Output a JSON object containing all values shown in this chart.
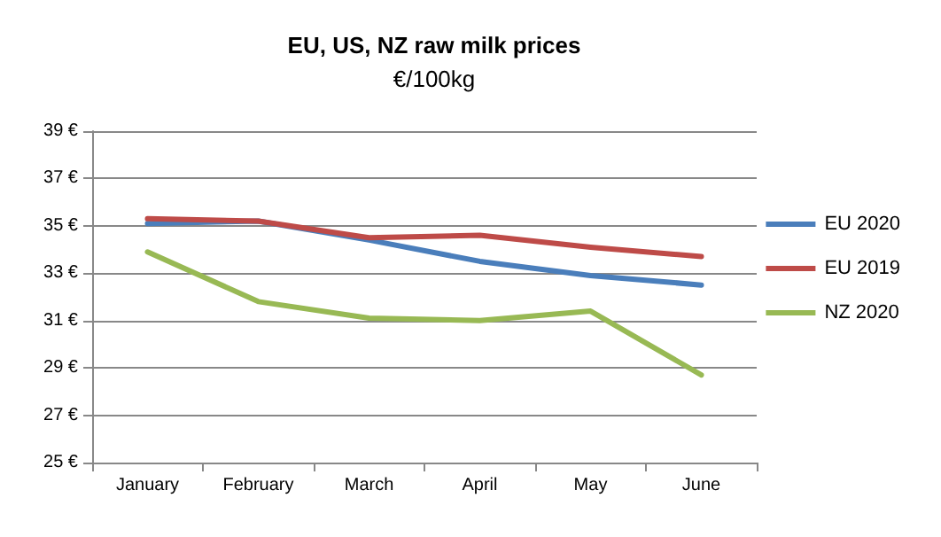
{
  "chart_data": {
    "type": "line",
    "title": "EU, US, NZ raw milk prices",
    "subtitle": "€/100kg",
    "categories": [
      "January",
      "February",
      "March",
      "April",
      "May",
      "June"
    ],
    "series": [
      {
        "name": "EU 2020",
        "color": "#4a7ebb",
        "values": [
          35.1,
          35.2,
          34.4,
          33.5,
          32.9,
          32.5
        ]
      },
      {
        "name": "EU 2019",
        "color": "#be4b48",
        "values": [
          35.3,
          35.2,
          34.5,
          34.6,
          34.1,
          33.7
        ]
      },
      {
        "name": "NZ 2020",
        "color": "#98b954",
        "values": [
          33.9,
          31.8,
          31.1,
          31.0,
          31.4,
          28.7
        ]
      }
    ],
    "ylim": [
      25,
      39
    ],
    "yticks": [
      {
        "value": 25,
        "label": "25 €"
      },
      {
        "value": 27,
        "label": "27 €"
      },
      {
        "value": 29,
        "label": "29 €"
      },
      {
        "value": 31,
        "label": "31 €"
      },
      {
        "value": 33,
        "label": "33 €"
      },
      {
        "value": 35,
        "label": "35 €"
      },
      {
        "value": 37,
        "label": "37 €"
      },
      {
        "value": 39,
        "label": "39 €"
      }
    ],
    "grid": "y",
    "legend": "right",
    "marker": "none",
    "line_style": "solid"
  }
}
